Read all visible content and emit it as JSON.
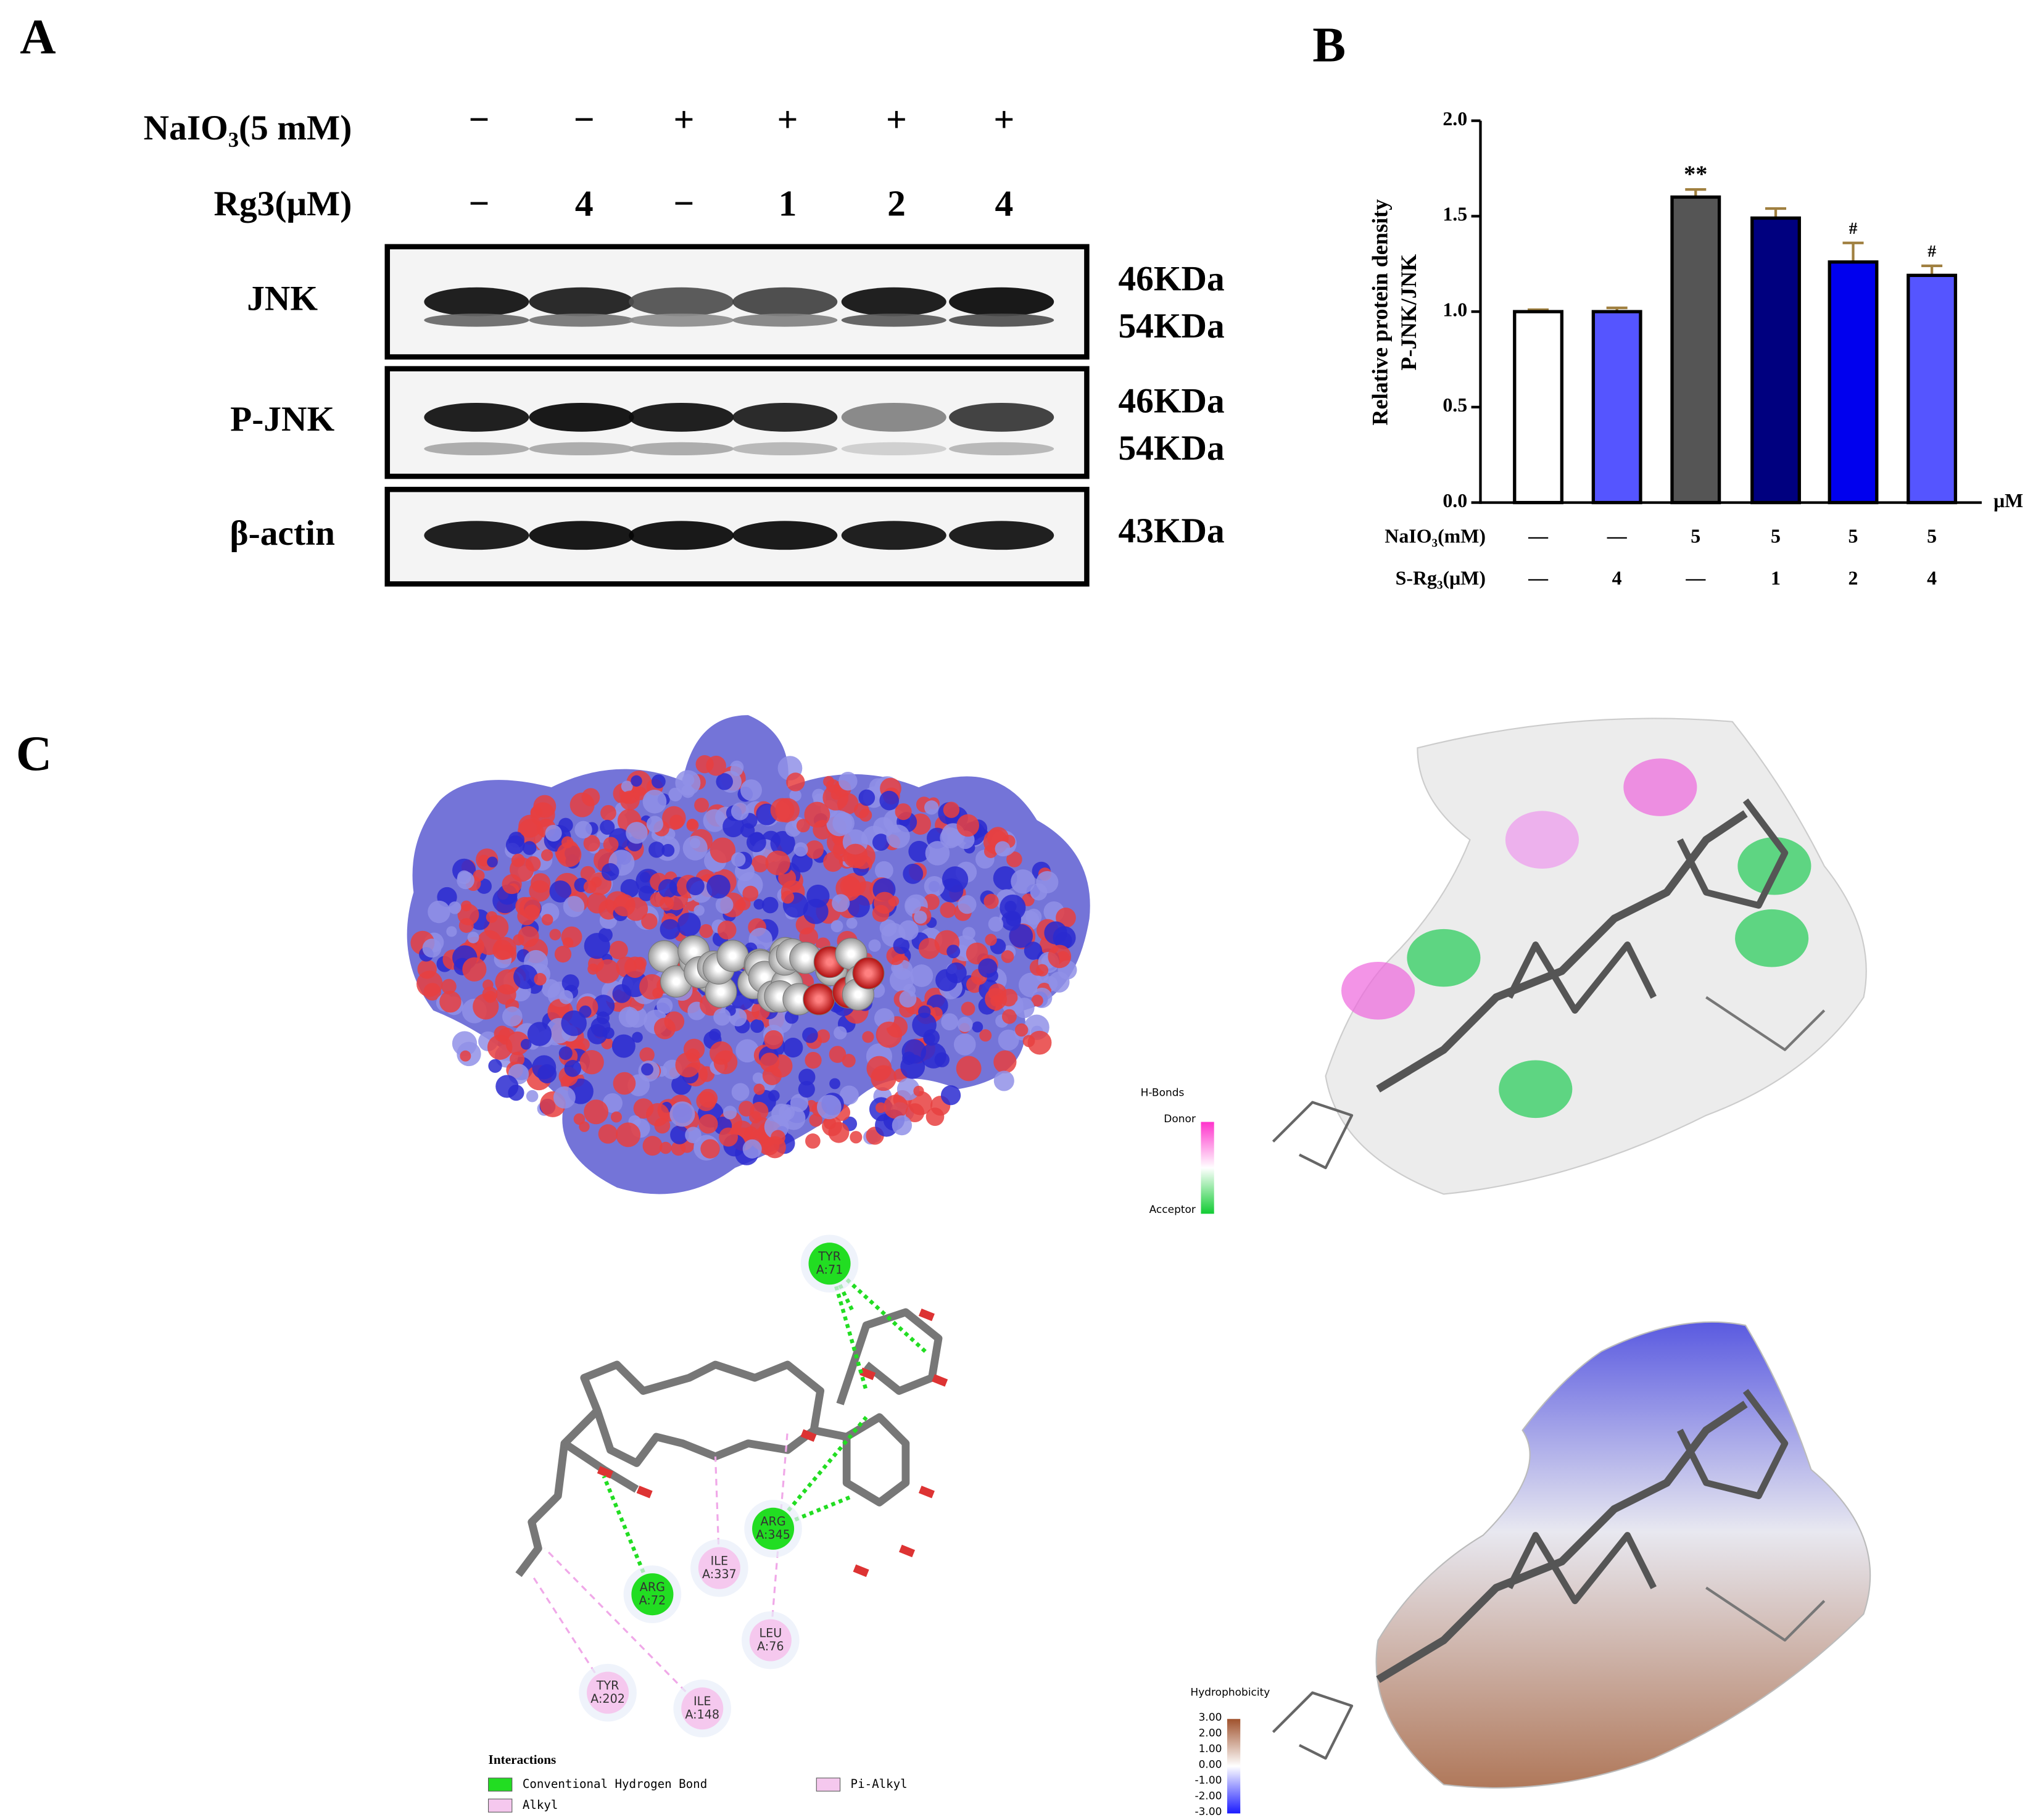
{
  "panels": {
    "a": "A",
    "b": "B",
    "c": "C"
  },
  "blot": {
    "treatments": [
      {
        "label": "NaIO₃(5 mM)",
        "lanes": [
          "−",
          "−",
          "+",
          "+",
          "+",
          "+"
        ]
      },
      {
        "label": "Rg3(μM)",
        "lanes": [
          "−",
          "4",
          "−",
          "1",
          "2",
          "4"
        ]
      }
    ],
    "rows": [
      {
        "label": "JNK",
        "sizes": [
          "46KDa",
          "54KDa"
        ]
      },
      {
        "label": "P-JNK",
        "sizes": [
          "46KDa",
          "54KDa"
        ]
      },
      {
        "label": "β-actin",
        "sizes": [
          "43KDa"
        ]
      }
    ]
  },
  "chart_data": {
    "type": "bar",
    "y_label": [
      "Relative protein density",
      "P-JNK/JNK"
    ],
    "unit": "μM",
    "values": [
      1.0,
      1.0,
      1.6,
      1.49,
      1.26,
      1.19
    ],
    "errors": [
      0.01,
      0.02,
      0.04,
      0.05,
      0.1,
      0.05
    ],
    "colors": [
      "#ffffff",
      "#5555ff",
      "#555555",
      "#00007f",
      "#0000ee",
      "#5555ff"
    ],
    "error_color": "#a08040",
    "value_annotations": [
      null,
      null,
      "**",
      null,
      "#",
      "#"
    ],
    "ylim": [
      0,
      2
    ],
    "yticks": [
      {
        "value": 0,
        "label": "0.0"
      },
      {
        "value": 0.5,
        "label": "0.5"
      },
      {
        "value": 1,
        "label": "1.0"
      },
      {
        "value": 1.5,
        "label": "1.5"
      },
      {
        "value": 2,
        "label": "2.0"
      }
    ],
    "condition_rows": [
      {
        "label": "NaIO₃(mM)",
        "values": [
          "—",
          "—",
          "5",
          "5",
          "5",
          "5"
        ]
      },
      {
        "label": "S-Rg₃(μM)",
        "values": [
          "—",
          "4",
          "—",
          "1",
          "2",
          "4"
        ]
      }
    ]
  },
  "docking": {
    "hbond_legend": {
      "title": "H-Bonds",
      "top": "Donor",
      "bottom": "Acceptor"
    },
    "hydrophobicity_legend": {
      "title": "Hydrophobicity",
      "ticks": [
        "3.00",
        "2.00",
        "1.00",
        "0.00",
        "-1.00",
        "-2.00",
        "-3.00"
      ]
    },
    "residues": [
      {
        "label": [
          "TYR",
          "A:71"
        ],
        "color": "#22dd22"
      },
      {
        "label": [
          "ARG",
          "A:345"
        ],
        "color": "#22dd22"
      },
      {
        "label": [
          "ARG",
          "A:72"
        ],
        "color": "#22dd22"
      },
      {
        "label": [
          "ILE",
          "A:337"
        ],
        "color": "#f5c8ee"
      },
      {
        "label": [
          "LEU",
          "A:76"
        ],
        "color": "#f5c8ee"
      },
      {
        "label": [
          "TYR",
          "A:202"
        ],
        "color": "#f5c8ee"
      },
      {
        "label": [
          "ILE",
          "A:148"
        ],
        "color": "#f5c8ee"
      }
    ],
    "interactions": {
      "title": "Interactions",
      "items": [
        {
          "label": "Conventional Hydrogen Bond",
          "color": "#22dd22"
        },
        {
          "label": "Alkyl",
          "color": "#f5c8ee"
        },
        {
          "label": "Pi-Alkyl",
          "color": "#f5c8ee"
        }
      ]
    }
  }
}
